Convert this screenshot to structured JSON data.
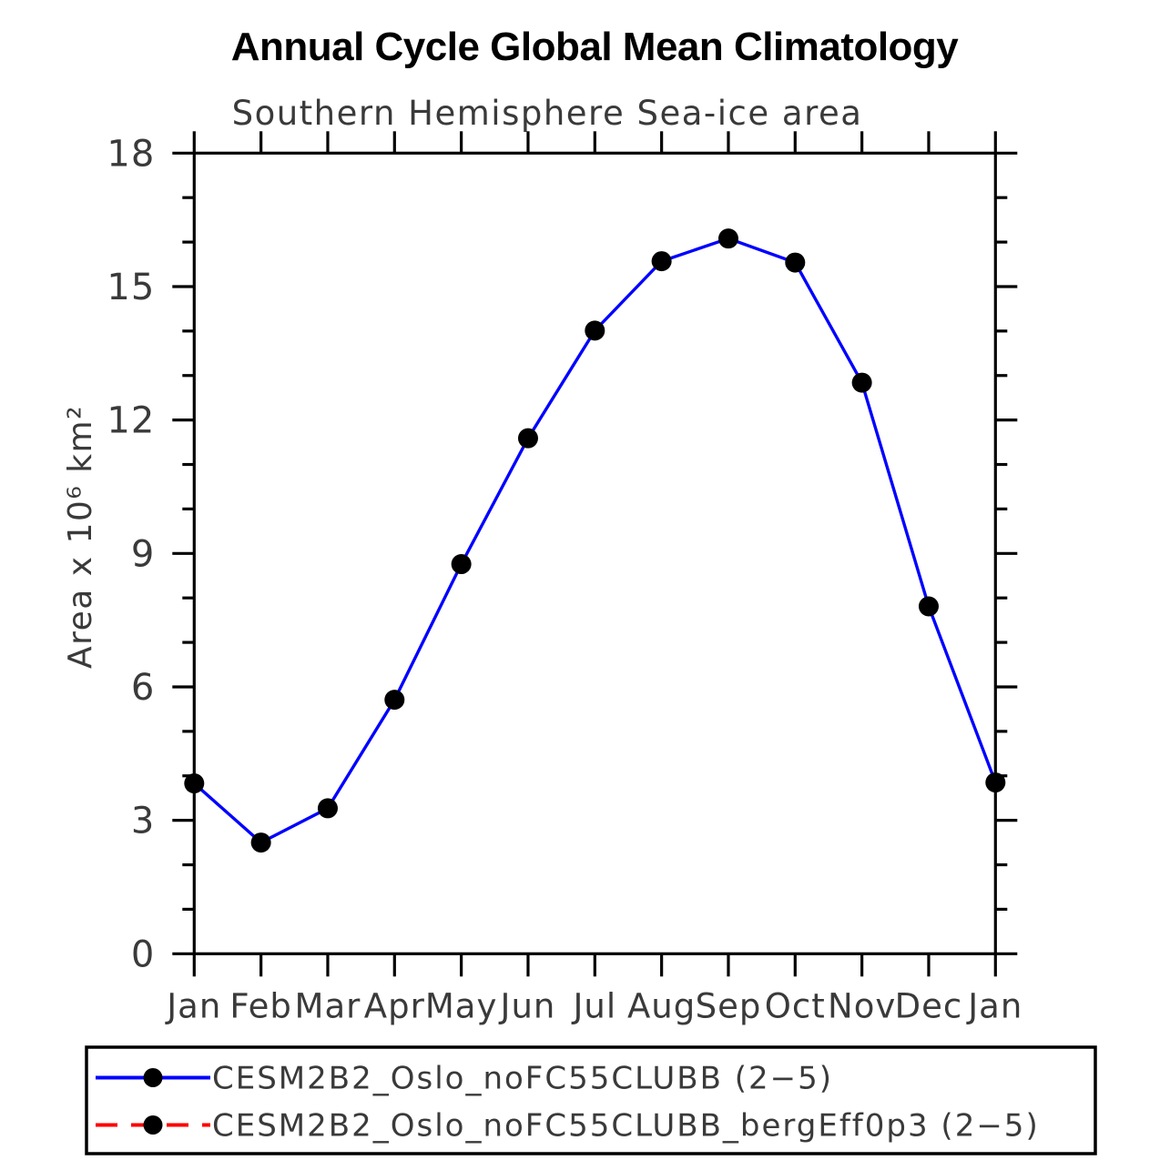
{
  "chart_data": {
    "type": "line",
    "title": "Annual Cycle Global Mean Climatology",
    "subtitle": "Southern Hemisphere Sea-ice area",
    "categories": [
      "Jan",
      "Feb",
      "Mar",
      "Apr",
      "May",
      "Jun",
      "Jul",
      "Aug",
      "Sep",
      "Oct",
      "Nov",
      "Dec",
      "Jan"
    ],
    "xlabel": "",
    "ylabel": "Area x 10⁶ km²",
    "ylim": [
      0,
      18
    ],
    "yticks_major": [
      0,
      3,
      6,
      9,
      12,
      15,
      18
    ],
    "ytick_minor_step": 1,
    "grid": false,
    "legend_position": "bottom",
    "series": [
      {
        "name": "CESM2B2_Oslo_noFC55CLUBB (2−5)",
        "color": "#0000ff",
        "style": "solid",
        "marker": "black-filled-circle",
        "visible_on_plot": true,
        "values": [
          3.83,
          2.5,
          3.27,
          5.71,
          8.76,
          11.59,
          14.01,
          15.57,
          16.08,
          15.54,
          12.84,
          7.81,
          3.85
        ]
      },
      {
        "name": "CESM2B2_Oslo_noFC55CLUBB_bergEff0p3 (2−5)",
        "color": "#ff0000",
        "style": "dashed",
        "marker": "black-filled-circle",
        "visible_on_plot": false,
        "values": []
      }
    ]
  },
  "colors": {
    "line_blue": "#0000ff",
    "line_red": "#ff0000",
    "marker": "#000000",
    "axis": "#000000",
    "label_text": "#3a3a3a",
    "title_text": "#000000"
  }
}
